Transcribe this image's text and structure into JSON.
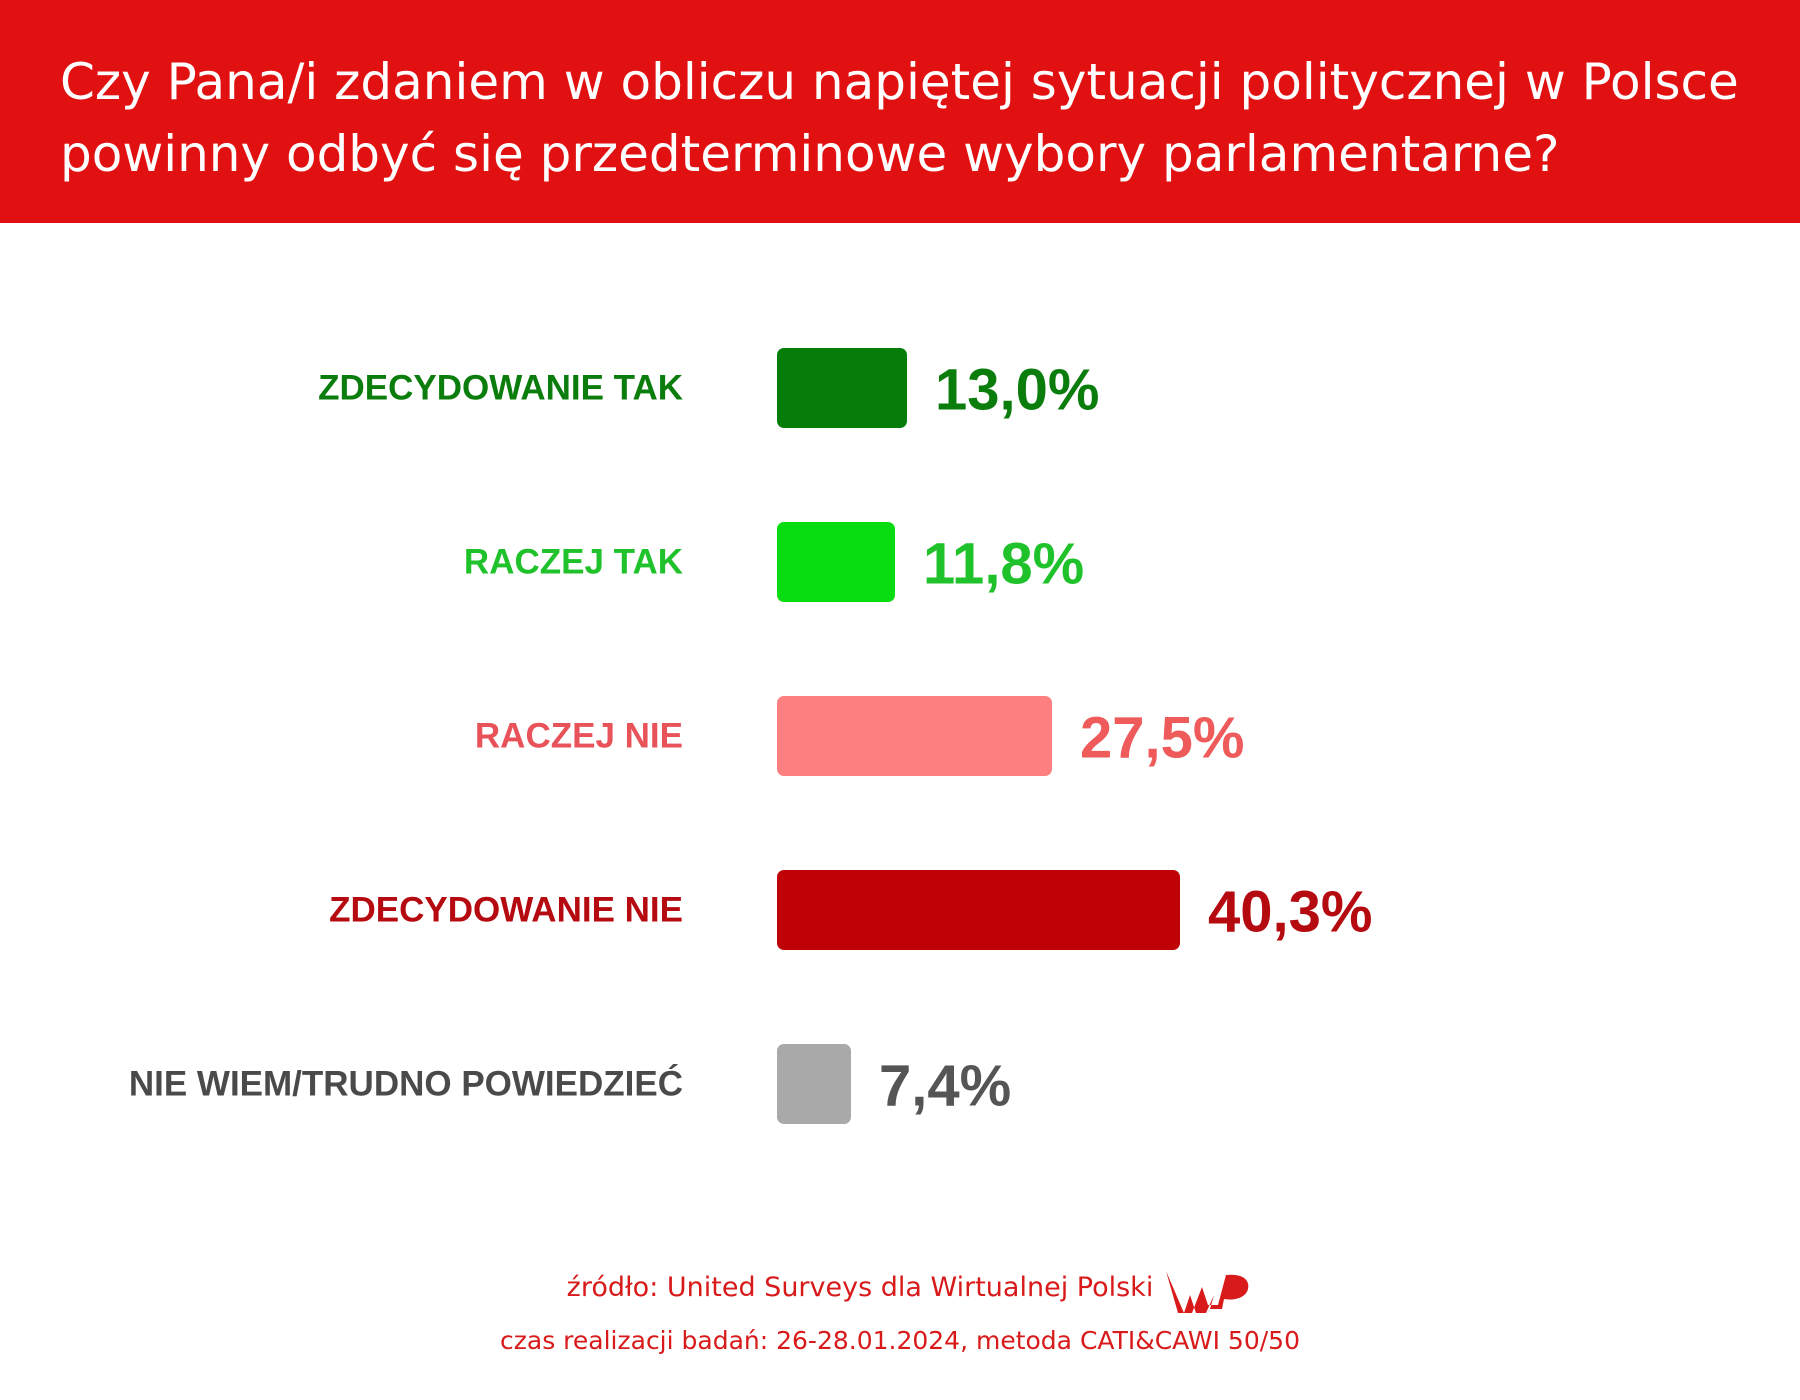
{
  "header": {
    "title_line1": "Czy Pana/i zdaniem w obliczu napiętej sytuacji politycznej w Polsce",
    "title_line2": "powinny odbyć się przedterminowe wybory parlamentarne?",
    "background_color": "#e21111"
  },
  "chart_data": {
    "type": "bar",
    "orientation": "horizontal",
    "categories": [
      "ZDECYDOWANIE TAK",
      "RACZEJ TAK",
      "RACZEJ NIE",
      "ZDECYDOWANIE NIE",
      "NIE WIEM/TRUDNO POWIEDZIEĆ"
    ],
    "values": [
      13.0,
      11.8,
      27.5,
      40.3,
      7.4
    ],
    "value_labels": [
      "13,0%",
      "11,8%",
      "27,5%",
      "40,3%",
      "7,4%"
    ],
    "colors": [
      "#067d08",
      "#08dd12",
      "#fd7f7f",
      "#bf0206",
      "#a9a9a9"
    ],
    "label_colors": [
      "#0a7d0c",
      "#1fc22a",
      "#e8535a",
      "#b50a10",
      "#4a4a4a"
    ],
    "value_label_colors": [
      "#0a7d0c",
      "#1fc22a",
      "#ef5a5a",
      "#b50a10",
      "#555555"
    ],
    "xlim": [
      0,
      50
    ],
    "grid": false,
    "legend": "none"
  },
  "footer": {
    "source": "źródło: United Surveys dla Wirtualnej Polski",
    "method": "czas realizacji badań: 26-28.01.2024, metoda CATI&CAWI 50/50",
    "logo": "wp-logo"
  }
}
